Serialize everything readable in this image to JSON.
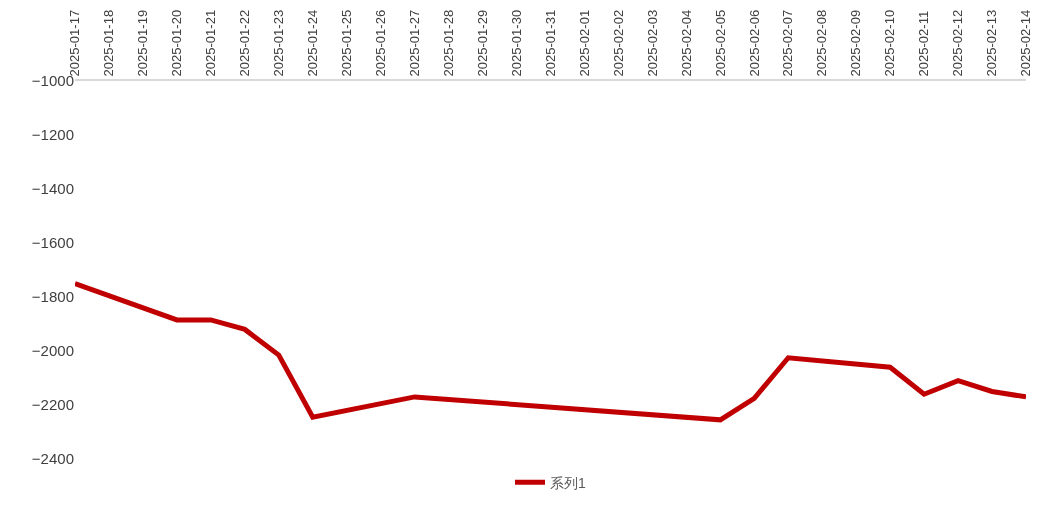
{
  "chart_data": {
    "type": "line",
    "x": [
      "2025-01-17",
      "2025-01-20",
      "2025-01-21",
      "2025-01-22",
      "2025-01-23",
      "2025-01-24",
      "2025-01-27",
      "2025-02-05",
      "2025-02-06",
      "2025-02-07",
      "2025-02-10",
      "2025-02-11",
      "2025-02-12",
      "2025-02-13",
      "2025-02-14"
    ],
    "series": [
      {
        "name": "系列1",
        "color": "#c00000",
        "values": [
          -1750,
          -1885,
          -1885,
          -1920,
          -2015,
          -2245,
          -2170,
          -2255,
          -2175,
          -2025,
          -2060,
          -2160,
          -2110,
          -2150,
          -2170
        ]
      }
    ],
    "xlim": [
      "2025-01-17",
      "2025-02-14"
    ],
    "xticks": [
      "2025-01-17",
      "2025-01-18",
      "2025-01-19",
      "2025-01-20",
      "2025-01-21",
      "2025-01-22",
      "2025-01-23",
      "2025-01-24",
      "2025-01-25",
      "2025-01-26",
      "2025-01-27",
      "2025-01-28",
      "2025-01-29",
      "2025-01-30",
      "2025-01-31",
      "2025-02-01",
      "2025-02-02",
      "2025-02-03",
      "2025-02-04",
      "2025-02-05",
      "2025-02-06",
      "2025-02-07",
      "2025-02-08",
      "2025-02-09",
      "2025-02-10",
      "2025-02-11",
      "2025-02-12",
      "2025-02-13",
      "2025-02-14"
    ],
    "ylim": [
      -2400,
      -1000
    ],
    "yticks": [
      -1000,
      -1200,
      -1400,
      -1600,
      -1800,
      -2000,
      -2200,
      -2400
    ],
    "grid": false,
    "legend": "bottom",
    "marker": "none",
    "line_style": "solid"
  }
}
